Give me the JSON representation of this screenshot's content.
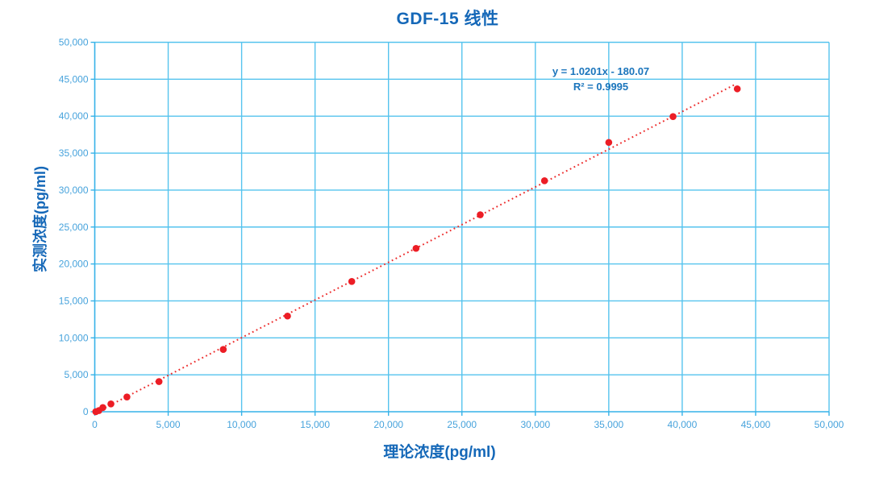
{
  "chart_data": {
    "type": "scatter",
    "title": "GDF-15 线性",
    "xlabel": "理论浓度(pg/ml)",
    "ylabel": "实测浓度(pg/ml)",
    "xlim": [
      0,
      50000
    ],
    "ylim": [
      0,
      50000
    ],
    "x_ticks": [
      0,
      5000,
      10000,
      15000,
      20000,
      25000,
      30000,
      35000,
      40000,
      45000,
      50000
    ],
    "y_ticks": [
      0,
      5000,
      10000,
      15000,
      20000,
      25000,
      30000,
      35000,
      40000,
      45000,
      50000
    ],
    "x_tick_labels": [
      "0",
      "5,000",
      "10,000",
      "15,000",
      "20,000",
      "25,000",
      "30,000",
      "35,000",
      "40,000",
      "45,000",
      "50,000"
    ],
    "y_tick_labels": [
      "0",
      "5,000",
      "10,000",
      "15,000",
      "20,000",
      "25,000",
      "30,000",
      "35,000",
      "40,000",
      "45,000",
      "50,000"
    ],
    "grid": true,
    "legend": "none",
    "points": [
      [
        70,
        10
      ],
      [
        280,
        160
      ],
      [
        550,
        570
      ],
      [
        1100,
        1060
      ],
      [
        2190,
        2000
      ],
      [
        4375,
        4080
      ],
      [
        8750,
        8430
      ],
      [
        13125,
        12950
      ],
      [
        17500,
        17630
      ],
      [
        21875,
        22110
      ],
      [
        26250,
        26660
      ],
      [
        30625,
        31260
      ],
      [
        35000,
        36450
      ],
      [
        39375,
        39950
      ],
      [
        43750,
        43700
      ]
    ],
    "trendline": {
      "slope": 1.0201,
      "intercept": -180.07,
      "x_start": 176.5,
      "x_end": 43700,
      "style": "dotted"
    },
    "equation": "y = 1.0201x - 180.07",
    "r_squared": "R² = 0.9995",
    "colors": {
      "title": "#1568B8",
      "axis_titles": "#1568B8",
      "equation": "#1B75BC",
      "tick_labels": "#47A3DC",
      "gridlines": "#55C3EE",
      "axis_lines": "#36B2E8",
      "points": "#EC1D25",
      "trendline": "#ED2E2E"
    }
  }
}
